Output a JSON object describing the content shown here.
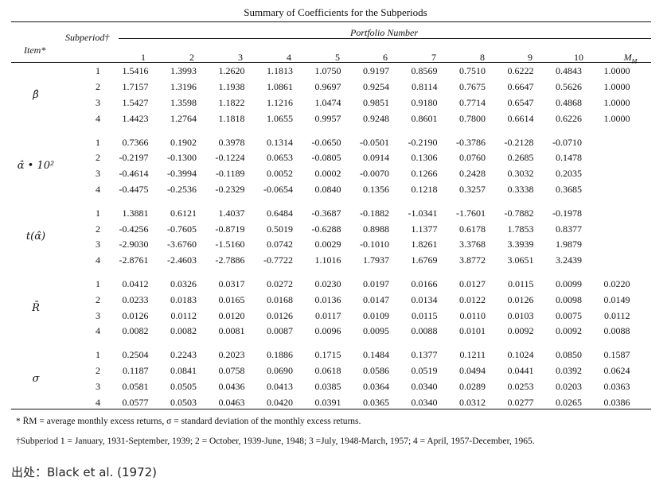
{
  "title": "Summary of Coefficients for the Subperiods",
  "header": {
    "item": "Item*",
    "subperiod": "Subperiod†",
    "portfolio_number": "Portfolio Number",
    "columns": [
      "1",
      "2",
      "3",
      "4",
      "5",
      "6",
      "7",
      "8",
      "9",
      "10"
    ],
    "market_col": "M",
    "market_sub": "M"
  },
  "groups": [
    {
      "item": "β̂",
      "rows": [
        {
          "sp": "1",
          "values": [
            "1.5416",
            "1.3993",
            "1.2620",
            "1.1813",
            "1.0750",
            "0.9197",
            "0.8569",
            "0.7510",
            "0.6222",
            "0.4843",
            "1.0000"
          ]
        },
        {
          "sp": "2",
          "values": [
            "1.7157",
            "1.3196",
            "1.1938",
            "1.0861",
            "0.9697",
            "0.9254",
            "0.8114",
            "0.7675",
            "0.6647",
            "0.5626",
            "1.0000"
          ]
        },
        {
          "sp": "3",
          "values": [
            "1.5427",
            "1.3598",
            "1.1822",
            "1.1216",
            "1.0474",
            "0.9851",
            "0.9180",
            "0.7714",
            "0.6547",
            "0.4868",
            "1.0000"
          ]
        },
        {
          "sp": "4",
          "values": [
            "1.4423",
            "1.2764",
            "1.1818",
            "1.0655",
            "0.9957",
            "0.9248",
            "0.8601",
            "0.7800",
            "0.6614",
            "0.6226",
            "1.0000"
          ]
        }
      ]
    },
    {
      "item": "α̂ • 10²",
      "rows": [
        {
          "sp": "1",
          "values": [
            "0.7366",
            "0.1902",
            "0.3978",
            "0.1314",
            "-0.0650",
            "-0.0501",
            "-0.2190",
            "-0.3786",
            "-0.2128",
            "-0.0710",
            ""
          ]
        },
        {
          "sp": "2",
          "values": [
            "-0.2197",
            "-0.1300",
            "-0.1224",
            "0.0653",
            "-0.0805",
            "0.0914",
            "0.1306",
            "0.0760",
            "0.2685",
            "0.1478",
            ""
          ]
        },
        {
          "sp": "3",
          "values": [
            "-0.4614",
            "-0.3994",
            "-0.1189",
            "0.0052",
            "0.0002",
            "-0.0070",
            "0.1266",
            "0.2428",
            "0.3032",
            "0.2035",
            ""
          ]
        },
        {
          "sp": "4",
          "values": [
            "-0.4475",
            "-0.2536",
            "-0.2329",
            "-0.0654",
            "0.0840",
            "0.1356",
            "0.1218",
            "0.3257",
            "0.3338",
            "0.3685",
            ""
          ]
        }
      ]
    },
    {
      "item": "t(α̂)",
      "rows": [
        {
          "sp": "1",
          "values": [
            "1.3881",
            "0.6121",
            "1.4037",
            "0.6484",
            "-0.3687",
            "-0.1882",
            "-1.0341",
            "-1.7601",
            "-0.7882",
            "-0.1978",
            ""
          ]
        },
        {
          "sp": "2",
          "values": [
            "-0.4256",
            "-0.7605",
            "-0.8719",
            "0.5019",
            "-0.6288",
            "0.8988",
            "1.1377",
            "0.6178",
            "1.7853",
            "0.8377",
            ""
          ]
        },
        {
          "sp": "3",
          "values": [
            "-2.9030",
            "-3.6760",
            "-1.5160",
            "0.0742",
            "0.0029",
            "-0.1010",
            "1.8261",
            "3.3768",
            "3.3939",
            "1.9879",
            ""
          ]
        },
        {
          "sp": "4",
          "values": [
            "-2.8761",
            "-2.4603",
            "-2.7886",
            "-0.7722",
            "1.1016",
            "1.7937",
            "1.6769",
            "3.8772",
            "3.0651",
            "3.2439",
            ""
          ]
        }
      ]
    },
    {
      "item": "R̄",
      "rows": [
        {
          "sp": "1",
          "values": [
            "0.0412",
            "0.0326",
            "0.0317",
            "0.0272",
            "0.0230",
            "0.0197",
            "0.0166",
            "0.0127",
            "0.0115",
            "0.0099",
            "0.0220"
          ]
        },
        {
          "sp": "2",
          "values": [
            "0.0233",
            "0.0183",
            "0.0165",
            "0.0168",
            "0.0136",
            "0.0147",
            "0.0134",
            "0.0122",
            "0.0126",
            "0.0098",
            "0.0149"
          ]
        },
        {
          "sp": "3",
          "values": [
            "0.0126",
            "0.0112",
            "0.0120",
            "0.0126",
            "0.0117",
            "0.0109",
            "0.0115",
            "0.0110",
            "0.0103",
            "0.0075",
            "0.0112"
          ]
        },
        {
          "sp": "4",
          "values": [
            "0.0082",
            "0.0082",
            "0.0081",
            "0.0087",
            "0.0096",
            "0.0095",
            "0.0088",
            "0.0101",
            "0.0092",
            "0.0092",
            "0.0088"
          ]
        }
      ]
    },
    {
      "item": "σ",
      "rows": [
        {
          "sp": "1",
          "values": [
            "0.2504",
            "0.2243",
            "0.2023",
            "0.1886",
            "0.1715",
            "0.1484",
            "0.1377",
            "0.1211",
            "0.1024",
            "0.0850",
            "0.1587"
          ]
        },
        {
          "sp": "2",
          "values": [
            "0.1187",
            "0.0841",
            "0.0758",
            "0.0690",
            "0.0618",
            "0.0586",
            "0.0519",
            "0.0494",
            "0.0441",
            "0.0392",
            "0.0624"
          ]
        },
        {
          "sp": "3",
          "values": [
            "0.0581",
            "0.0505",
            "0.0436",
            "0.0413",
            "0.0385",
            "0.0364",
            "0.0340",
            "0.0289",
            "0.0253",
            "0.0203",
            "0.0363"
          ]
        },
        {
          "sp": "4",
          "values": [
            "0.0577",
            "0.0503",
            "0.0463",
            "0.0420",
            "0.0391",
            "0.0365",
            "0.0340",
            "0.0312",
            "0.0277",
            "0.0265",
            "0.0386"
          ]
        }
      ]
    }
  ],
  "footnotes": {
    "note1": "* R̄M = average monthly excess returns, σ = standard deviation of the monthly excess returns.",
    "note2": "†Subperiod 1 = January, 1931-September, 1939; 2 = October, 1939-June, 1948; 3 =July, 1948-March, 1957; 4 = April, 1957-December, 1965."
  },
  "source": "出处：Black et al. (1972)"
}
